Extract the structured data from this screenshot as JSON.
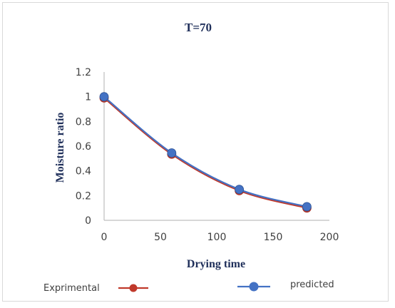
{
  "chart_data": {
    "type": "line",
    "title": "T=70",
    "xlabel": "Drying time",
    "ylabel": "Moisture ratio",
    "xlim": [
      0,
      200
    ],
    "ylim": [
      0,
      1.2
    ],
    "x_ticks": [
      "0",
      "50",
      "100",
      "150",
      "200"
    ],
    "y_ticks": [
      "0",
      "0.2",
      "0.4",
      "0.6",
      "0.8",
      "1",
      "1.2"
    ],
    "x_tick_values": [
      0,
      50,
      100,
      150,
      200
    ],
    "y_tick_values": [
      0,
      0.2,
      0.4,
      0.6,
      0.8,
      1.0,
      1.2
    ],
    "grid": false,
    "legend_position": "bottom",
    "series": [
      {
        "name": "Exprimental",
        "color": "#c0392b",
        "x": [
          0,
          60,
          120,
          180
        ],
        "y": [
          0.99,
          0.535,
          0.24,
          0.1
        ]
      },
      {
        "name": "predicted",
        "color": "#4472c4",
        "x": [
          0,
          60,
          120,
          180
        ],
        "y": [
          1.0,
          0.545,
          0.25,
          0.11
        ]
      }
    ]
  }
}
